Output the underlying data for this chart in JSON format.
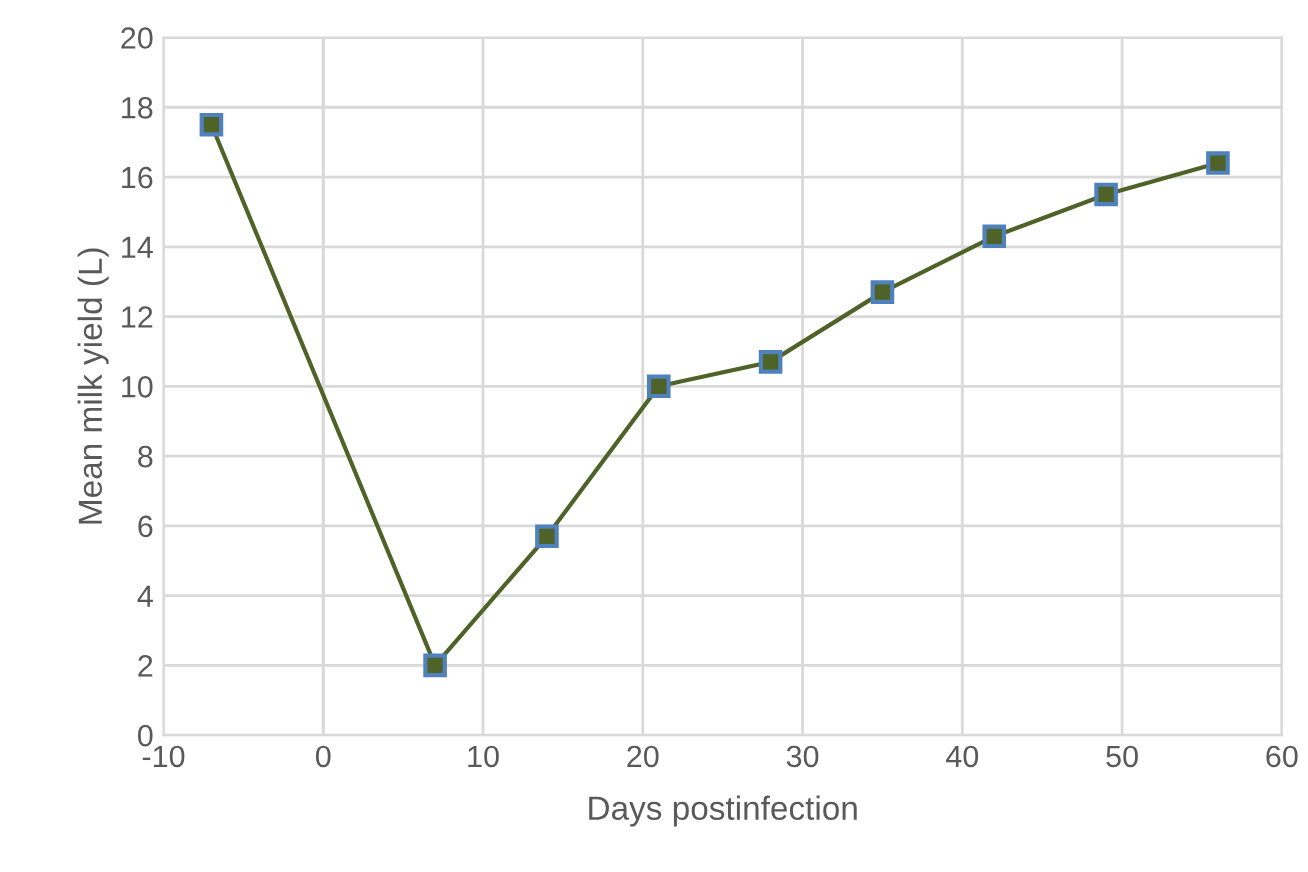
{
  "chart_data": {
    "type": "line",
    "xlabel": "Days postinfection",
    "ylabel": "Mean milk yield (L)",
    "x": [
      -7,
      7,
      14,
      21,
      28,
      35,
      42,
      49,
      56
    ],
    "series": [
      {
        "color": "#4f6228",
        "values": [
          17.5,
          2.0,
          5.7,
          10.0,
          10.7,
          12.7,
          14.3,
          15.5,
          16.4
        ]
      }
    ],
    "xlim": [
      -10,
      60
    ],
    "xticks": [
      -10,
      0,
      10,
      20,
      30,
      40,
      50,
      60
    ],
    "ylim": [
      0,
      20
    ],
    "yticks": [
      0,
      2,
      4,
      6,
      8,
      10,
      12,
      14,
      16,
      18,
      20
    ],
    "grid": true,
    "marker": "square",
    "line_style": "solid",
    "legend": false
  }
}
